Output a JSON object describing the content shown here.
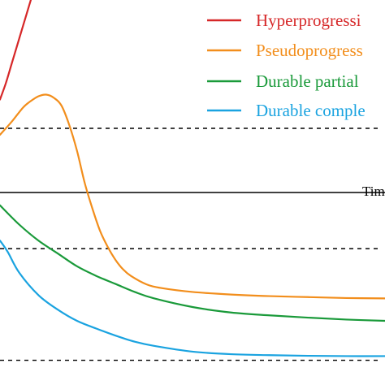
{
  "chart_data": {
    "type": "line",
    "title": "",
    "xlabel": "Tim",
    "ylabel": "",
    "legend_position": "top-right",
    "grid": false,
    "xlim": [
      0,
      100
    ],
    "ylim": [
      -60,
      60
    ],
    "reference_lines": [
      {
        "id": "zero-axis",
        "y": 0,
        "style": "solid"
      },
      {
        "id": "upper-threshold",
        "y": 20,
        "style": "dashed"
      },
      {
        "id": "lower-threshold",
        "y": -17.5,
        "style": "dashed"
      },
      {
        "id": "bottom-threshold",
        "y": -52.3,
        "style": "dashed"
      }
    ],
    "series": [
      {
        "name": "Hyperprogressi",
        "color": "#d62728",
        "x": [
          0,
          1.5,
          3,
          4.5,
          6,
          7,
          8
        ],
        "y": [
          29,
          34,
          40,
          46,
          52,
          56,
          60
        ]
      },
      {
        "name": "Pseudoprogress",
        "color": "#f28e1c",
        "x": [
          0,
          3,
          6,
          8,
          10,
          12,
          14,
          16,
          18,
          20,
          22,
          24,
          26,
          28,
          30,
          32,
          34,
          38,
          42,
          50,
          60,
          70,
          80,
          90,
          100
        ],
        "y": [
          18,
          22,
          26.5,
          28.5,
          30,
          30.5,
          29.5,
          27,
          21,
          13,
          3,
          -5,
          -12,
          -17,
          -21,
          -24,
          -26,
          -28.6,
          -29.8,
          -31,
          -31.8,
          -32.3,
          -32.6,
          -32.9,
          -33
        ]
      },
      {
        "name": "Durable partial",
        "color": "#1a9a3a",
        "x": [
          0,
          5,
          10,
          15,
          20,
          25,
          30,
          35,
          40,
          50,
          60,
          70,
          80,
          90,
          100
        ],
        "y": [
          -4,
          -10,
          -15,
          -19,
          -23,
          -26,
          -28.5,
          -31,
          -33,
          -35.7,
          -37.4,
          -38.3,
          -39,
          -39.6,
          -40
        ]
      },
      {
        "name": "Durable comple",
        "color": "#1aa3e0",
        "x": [
          0,
          2,
          5,
          10,
          15,
          20,
          25,
          30,
          35,
          40,
          50,
          60,
          70,
          80,
          90,
          100
        ],
        "y": [
          -15,
          -18.5,
          -25,
          -32,
          -36.5,
          -40,
          -42.4,
          -44.6,
          -46.5,
          -47.8,
          -49.6,
          -50.4,
          -50.7,
          -50.9,
          -51,
          -51
        ]
      }
    ]
  }
}
